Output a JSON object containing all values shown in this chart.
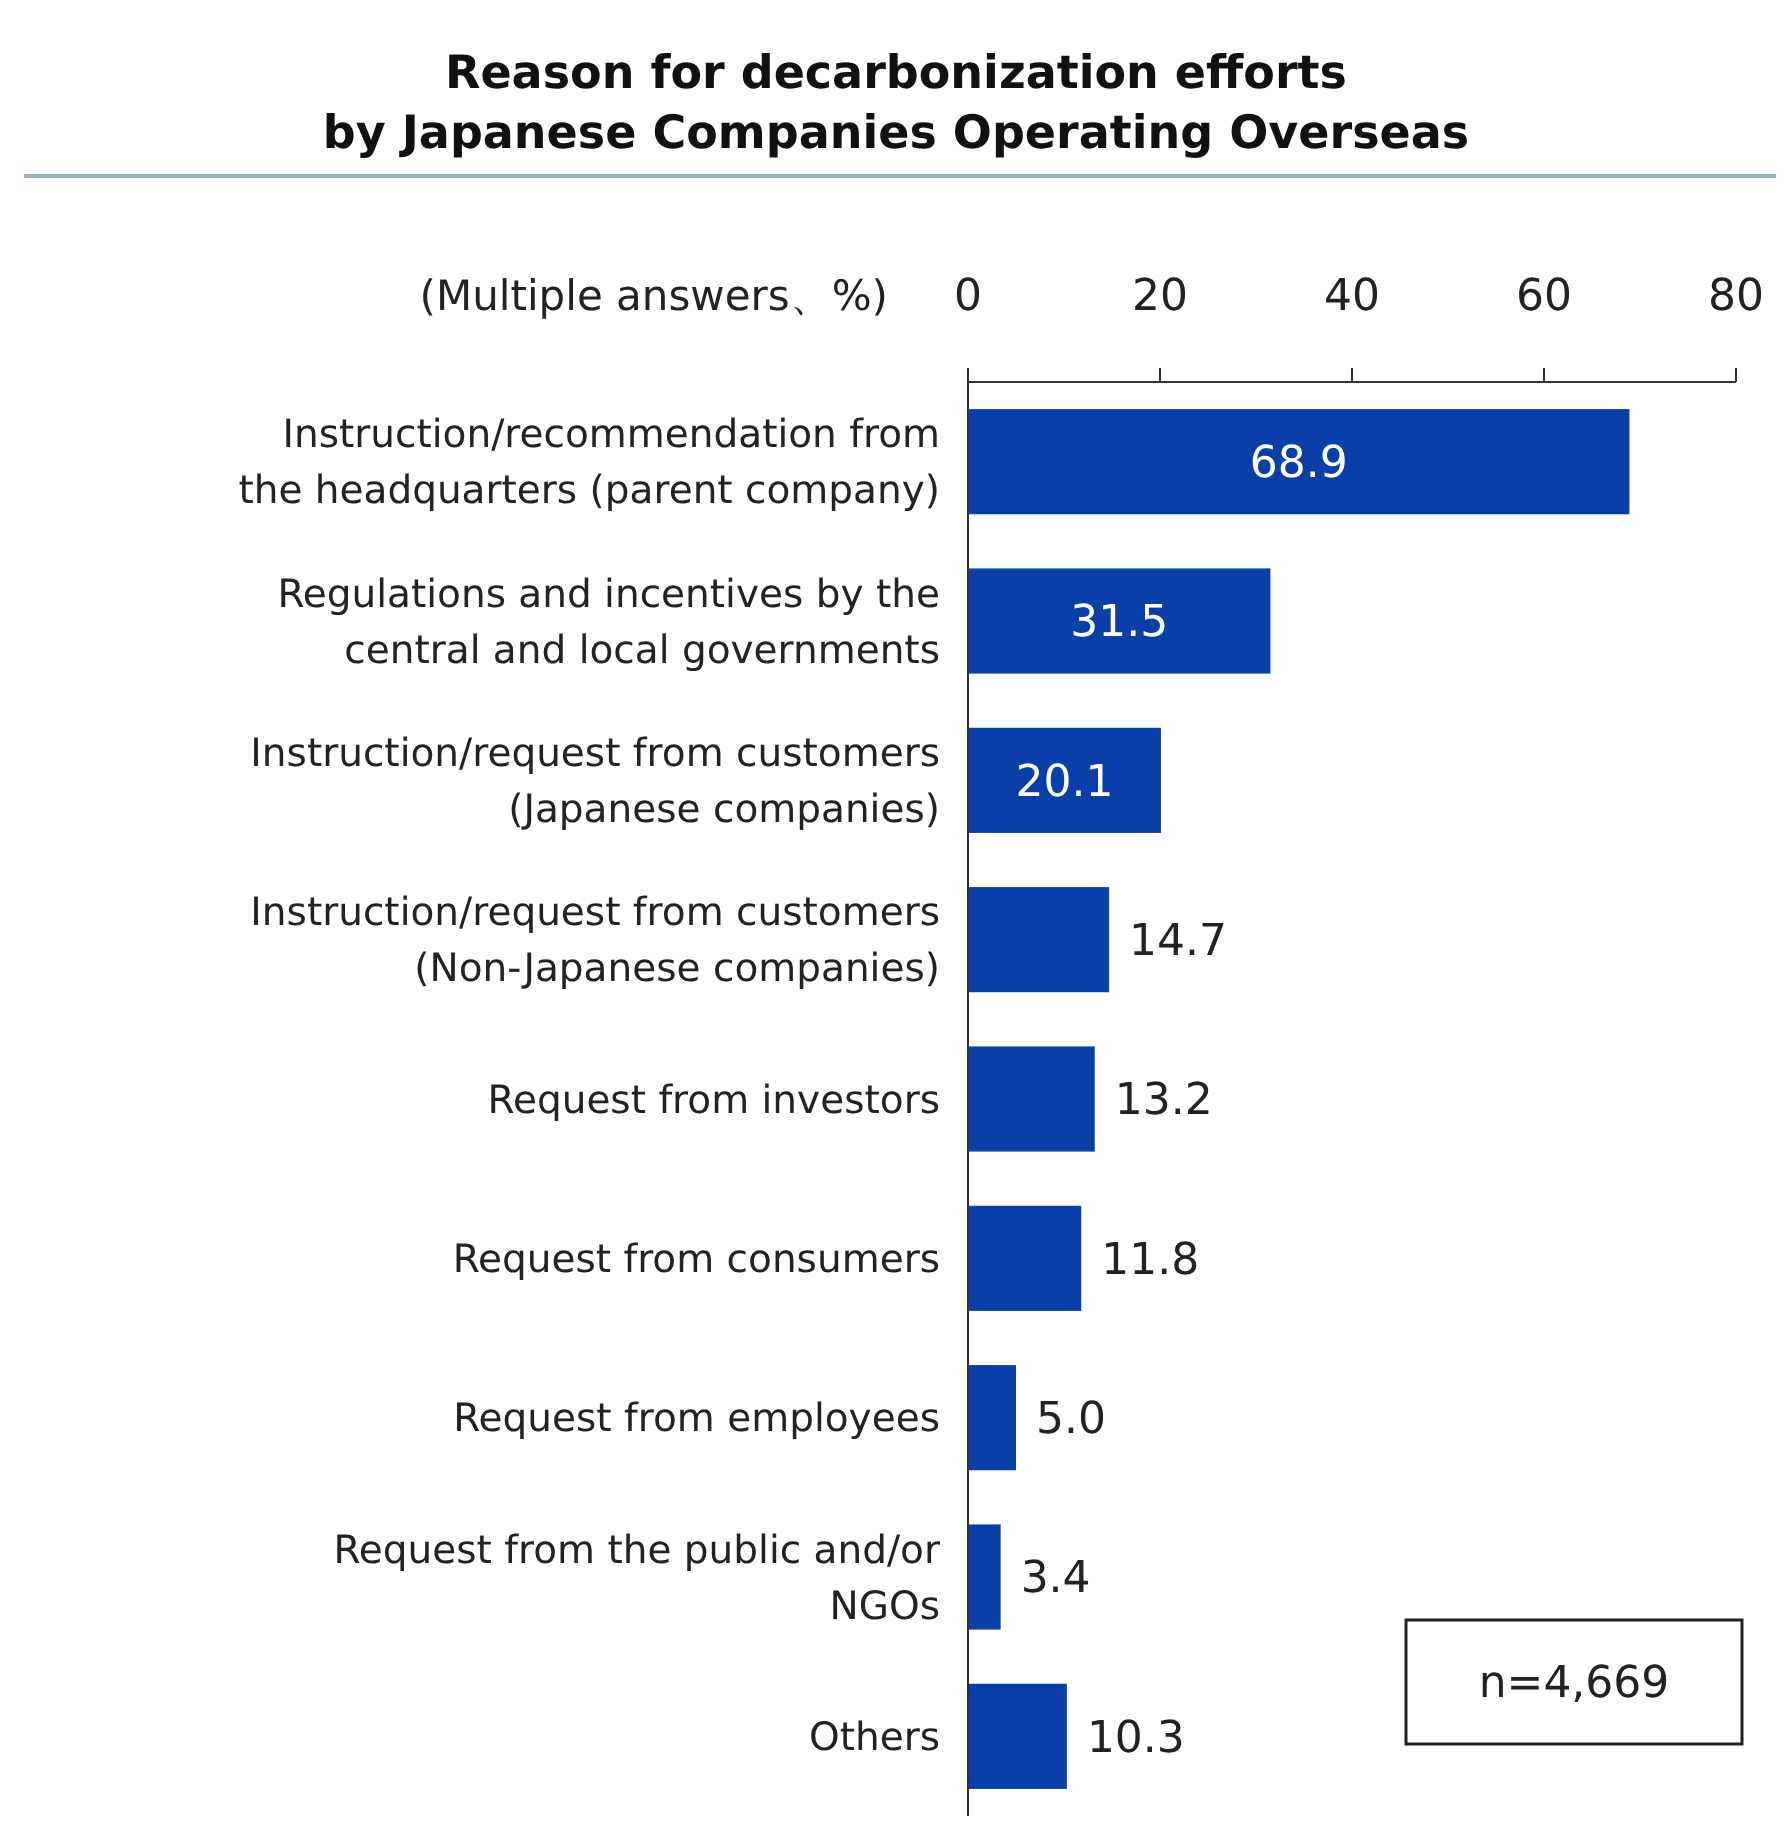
{
  "chart_data": {
    "type": "bar",
    "orientation": "horizontal",
    "title": "Reason for decarbonization efforts\nby Japanese Companies Operating Overseas",
    "xlabel": "(Multiple answers、%)",
    "categories": [
      "Instruction/recommendation from the headquarters (parent company)",
      "Regulations and incentives by the central and local governments",
      "Instruction/request from customers (Japanese companies)",
      "Instruction/request from customers (Non-Japanese companies)",
      "Request from investors",
      "Request from consumers",
      "Request from employees",
      "Request from the public and/or NGOs",
      "Others"
    ],
    "values": [
      68.9,
      31.5,
      20.1,
      14.7,
      13.2,
      11.8,
      5.0,
      3.4,
      10.3
    ],
    "value_labels": [
      "68.9",
      "31.5",
      "20.1",
      "14.7",
      "13.2",
      "11.8",
      "5.0",
      "3.4",
      "10.3"
    ],
    "color": "#0b3fa8",
    "xlim": [
      0,
      80
    ],
    "xticks": [
      0,
      20,
      40,
      60,
      80
    ],
    "grid": false,
    "annotations": [
      "n=4,669"
    ]
  }
}
